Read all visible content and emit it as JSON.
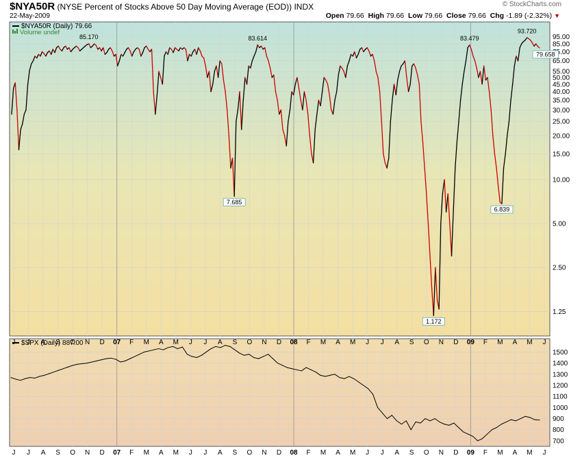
{
  "header": {
    "symbol": "$NYA50R",
    "description": "(NYSE Percent of Stocks Above 50 Day Moving Average (EOD))",
    "exchange": "INDX",
    "date": "22-May-2009",
    "brand": "© StockCharts.com",
    "open_label": "Open",
    "open": "79.66",
    "high_label": "High",
    "high": "79.66",
    "low_label": "Low",
    "low": "79.66",
    "close_label": "Close",
    "close": "79.66",
    "chg_label": "Chg",
    "chg": "-1.89 (-2.32%)"
  },
  "upper_legend": {
    "main": "$NYA50R (Daily) 79.66",
    "volume": "Volume undef"
  },
  "lower_legend": "$SPX (Daily) 887.00",
  "colors": {
    "up": "#000000",
    "down": "#d00000",
    "spx": "#000000"
  },
  "chart_data": [
    {
      "type": "line",
      "scale": "log",
      "ylim": [
        0.85,
        120
      ],
      "yticks": [
        1.25,
        2.5,
        5.0,
        10.0,
        15.0,
        20.0,
        25.0,
        30.0,
        35.0,
        40.0,
        45.0,
        50.0,
        55.0,
        65.0,
        75.0,
        85.0,
        95.0
      ],
      "ytick_labels": [
        "1.25",
        "2.50",
        "5.00",
        "10.00",
        "15.00",
        "20.00",
        "25.00",
        "30.00",
        "35.00",
        "40.00",
        "45.00",
        "50.00",
        "55.00",
        "65.00",
        "75.00",
        "85.00",
        "95.00"
      ],
      "x_labels": [
        "J",
        "J",
        "A",
        "S",
        "O",
        "N",
        "D",
        "07",
        "F",
        "M",
        "A",
        "M",
        "J",
        "J",
        "A",
        "S",
        "O",
        "N",
        "D",
        "08",
        "F",
        "M",
        "A",
        "M",
        "J",
        "J",
        "A",
        "S",
        "O",
        "N",
        "D",
        "09",
        "F",
        "M",
        "A",
        "M",
        "J"
      ],
      "series": [
        {
          "values": [
            28,
            42,
            46,
            30,
            16,
            22,
            24,
            28,
            30,
            45,
            56,
            62,
            65,
            70,
            68,
            72,
            70,
            75,
            73,
            70,
            74,
            76,
            72,
            78,
            74,
            80,
            82,
            78,
            76,
            80,
            82,
            78,
            80,
            75,
            78,
            80,
            82,
            80,
            76,
            78,
            80,
            82,
            84,
            85,
            80,
            82,
            85,
            83,
            78,
            80,
            76,
            80,
            72,
            74,
            78,
            80,
            76,
            70,
            72,
            60,
            65,
            72,
            70,
            74,
            78,
            80,
            76,
            70,
            75,
            78,
            80,
            78,
            70,
            74,
            80,
            82,
            78,
            75,
            78,
            40,
            28,
            38,
            55,
            50,
            45,
            70,
            75,
            72,
            80,
            78,
            74,
            80,
            78,
            76,
            80,
            78,
            80,
            78,
            65,
            72,
            70,
            75,
            78,
            72,
            80,
            76,
            70,
            68,
            60,
            50,
            55,
            40,
            45,
            55,
            60,
            50,
            65,
            62,
            48,
            40,
            30,
            20,
            12,
            14,
            7.685,
            25,
            30,
            40,
            22,
            35,
            50,
            45,
            60,
            58,
            65,
            70,
            75,
            83.614,
            80,
            82,
            78,
            80,
            70,
            65,
            58,
            50,
            52,
            40,
            35,
            28,
            30,
            22,
            20,
            17,
            25,
            30,
            40,
            38,
            45,
            50,
            42,
            35,
            30,
            40,
            35,
            28,
            20,
            15,
            13,
            22,
            28,
            35,
            32,
            40,
            50,
            48,
            45,
            38,
            30,
            28,
            35,
            40,
            52,
            60,
            58,
            55,
            50,
            60,
            65,
            72,
            70,
            75,
            68,
            72,
            78,
            80,
            75,
            78,
            80,
            76,
            70,
            72,
            65,
            55,
            50,
            40,
            25,
            15,
            13,
            12,
            14,
            25,
            35,
            45,
            38,
            48,
            55,
            60,
            62,
            65,
            50,
            40,
            45,
            60,
            62,
            58,
            52,
            45,
            25,
            18,
            12,
            8,
            5,
            3,
            1.8,
            1.172,
            2.5,
            1.5,
            1.3,
            5,
            8,
            10,
            6,
            8,
            5,
            3,
            6,
            12,
            18,
            25,
            35,
            45,
            55,
            65,
            80,
            83.479,
            78,
            70,
            65,
            58,
            50,
            55,
            45,
            60,
            48,
            50,
            40,
            30,
            20,
            15,
            12,
            9,
            7,
            6.839,
            12,
            15,
            20,
            25,
            35,
            45,
            60,
            70,
            65,
            80,
            85,
            88,
            90,
            93.72,
            92,
            90,
            86,
            82,
            85,
            81.55,
            79.658
          ]
        }
      ],
      "annotations": [
        {
          "label": "85.170",
          "value": 85.17
        },
        {
          "label": "7.685",
          "value": 7.685
        },
        {
          "label": "83.614",
          "value": 83.614
        },
        {
          "label": "1.172",
          "value": 1.172
        },
        {
          "label": "83.479",
          "value": 83.479
        },
        {
          "label": "6.839",
          "value": 6.839
        },
        {
          "label": "93.720",
          "value": 93.72
        },
        {
          "label": "79.658",
          "value": 79.658
        }
      ]
    },
    {
      "type": "line",
      "ylim": [
        650,
        1620
      ],
      "yticks": [
        700,
        800,
        900,
        1000,
        1100,
        1200,
        1300,
        1400,
        1500
      ],
      "ytick_labels": [
        "700",
        "800",
        "900",
        "1000",
        "1100",
        "1200",
        "1300",
        "1400",
        "1500"
      ],
      "x_labels": [
        "J",
        "J",
        "A",
        "S",
        "O",
        "N",
        "D",
        "07",
        "F",
        "M",
        "A",
        "M",
        "J",
        "J",
        "A",
        "S",
        "O",
        "N",
        "D",
        "08",
        "F",
        "M",
        "A",
        "M",
        "J",
        "J",
        "A",
        "S",
        "O",
        "N",
        "D",
        "09",
        "F",
        "M",
        "A",
        "M",
        "J"
      ],
      "series": [
        {
          "values": [
            1270,
            1255,
            1245,
            1260,
            1270,
            1265,
            1280,
            1290,
            1305,
            1320,
            1335,
            1350,
            1365,
            1380,
            1390,
            1395,
            1400,
            1410,
            1420,
            1430,
            1440,
            1445,
            1435,
            1410,
            1420,
            1440,
            1460,
            1480,
            1500,
            1510,
            1520,
            1530,
            1520,
            1540,
            1550,
            1530,
            1545,
            1480,
            1460,
            1450,
            1470,
            1500,
            1530,
            1550,
            1540,
            1560,
            1550,
            1520,
            1490,
            1470,
            1480,
            1450,
            1440,
            1460,
            1480,
            1440,
            1400,
            1380,
            1360,
            1350,
            1340,
            1330,
            1360,
            1340,
            1320,
            1290,
            1280,
            1290,
            1300,
            1270,
            1260,
            1280,
            1260,
            1230,
            1200,
            1170,
            1120,
            1000,
            950,
            900,
            930,
            880,
            850,
            880,
            800,
            870,
            860,
            900,
            880,
            900,
            870,
            850,
            840,
            860,
            820,
            780,
            760,
            740,
            700,
            720,
            760,
            800,
            820,
            850,
            870,
            890,
            880,
            900,
            920,
            910,
            890,
            887
          ]
        }
      ]
    }
  ]
}
